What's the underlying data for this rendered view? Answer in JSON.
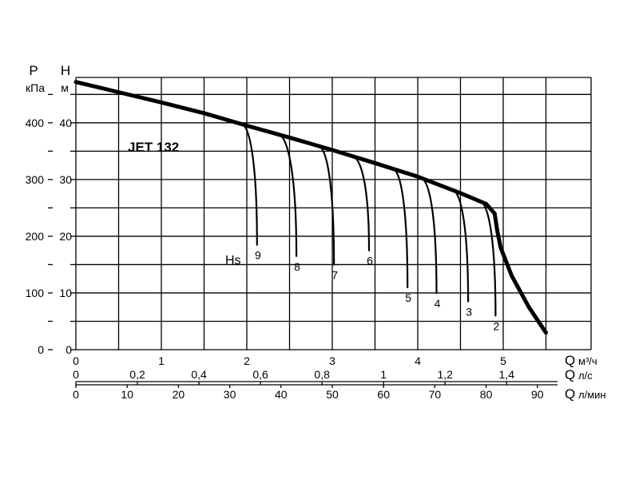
{
  "chart_data": {
    "type": "line",
    "title": "JET 132",
    "y_axes": {
      "pressure": {
        "symbol": "P",
        "unit": "кПа",
        "range": [
          0,
          480
        ],
        "ticks": [
          0,
          100,
          200,
          300,
          400
        ],
        "tick_labels": [
          "0",
          "100",
          "200",
          "300",
          "400"
        ]
      },
      "head": {
        "symbol": "H",
        "unit": "м",
        "range": [
          0,
          48
        ],
        "ticks": [
          0,
          10,
          20,
          30,
          40
        ],
        "tick_labels": [
          "0",
          "10",
          "20",
          "30",
          "40"
        ]
      }
    },
    "x_axes": {
      "m3h": {
        "symbol": "Q",
        "unit": "м³/ч",
        "range": [
          0,
          6
        ],
        "ticks": [
          0,
          1,
          2,
          3,
          4,
          5
        ],
        "tick_labels": [
          "0",
          "1",
          "2",
          "3",
          "4",
          "5"
        ]
      },
      "ls": {
        "symbol": "Q",
        "unit": "л/с",
        "ticks": [
          0,
          0.2,
          0.4,
          0.6,
          0.8,
          1,
          1.2,
          1.4
        ],
        "tick_labels": [
          "0",
          "0,2",
          "0,4",
          "0,6",
          "0,8",
          "1",
          "1,2",
          "1,4"
        ]
      },
      "lmin": {
        "symbol": "Q",
        "unit": "л/мин",
        "ticks": [
          0,
          10,
          20,
          30,
          40,
          50,
          60,
          70,
          80,
          90
        ],
        "tick_labels": [
          "0",
          "10",
          "20",
          "30",
          "40",
          "50",
          "60",
          "70",
          "80",
          "90"
        ]
      }
    },
    "grid": true,
    "series": [
      {
        "name": "",
        "x": [
          0,
          0.5,
          1,
          1.5,
          2,
          2.5,
          3,
          3.5,
          4,
          4.5,
          4.8,
          4.9,
          4.93,
          4.97,
          5.1,
          5.3,
          5.5
        ],
        "y": [
          47.2,
          45.4,
          43.6,
          41.7,
          39.5,
          37.4,
          35.2,
          32.9,
          30.5,
          27.6,
          25.7,
          24,
          21,
          18,
          13,
          7.5,
          3
        ]
      }
    ],
    "suction_curves": {
      "label": "Hs",
      "lines": [
        {
          "label": "9",
          "x_start": 1.95,
          "x_end": 2.12,
          "y_end": 18.5
        },
        {
          "label": "8",
          "x_start": 2.38,
          "x_end": 2.58,
          "y_end": 16.5
        },
        {
          "label": "7",
          "x_start": 2.85,
          "x_end": 3.02,
          "y_end": 15
        },
        {
          "label": "6",
          "x_start": 3.25,
          "x_end": 3.43,
          "y_end": 17.5
        },
        {
          "label": "5",
          "x_start": 3.72,
          "x_end": 3.88,
          "y_end": 11
        },
        {
          "label": "4",
          "x_start": 4.05,
          "x_end": 4.22,
          "y_end": 10
        },
        {
          "label": "3",
          "x_start": 4.42,
          "x_end": 4.59,
          "y_end": 8.5
        },
        {
          "label": "2",
          "x_start": 4.74,
          "x_end": 4.91,
          "y_end": 6
        }
      ]
    }
  }
}
